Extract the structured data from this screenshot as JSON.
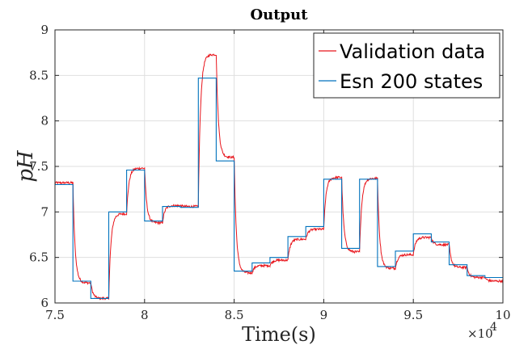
{
  "chart_data": {
    "type": "line",
    "title": "Output",
    "xlabel": "Time(s)",
    "ylabel": "pH",
    "x_multiplier_base": "×10",
    "x_multiplier_exp": "4",
    "xlim": [
      7.5,
      10
    ],
    "ylim": [
      6,
      9
    ],
    "xticks": [
      "7.5",
      "8",
      "8.5",
      "9",
      "9.5",
      "10"
    ],
    "xtick_values": [
      7.5,
      8,
      8.5,
      9,
      9.5,
      10
    ],
    "yticks": [
      "6",
      "6.5",
      "7",
      "7.5",
      "8",
      "8.5",
      "9"
    ],
    "ytick_values": [
      6,
      6.5,
      7,
      7.5,
      8,
      8.5,
      9
    ],
    "grid": true,
    "legend_position": "top-right",
    "series": [
      {
        "name": "Validation data",
        "color": "#e8141b",
        "step_levels": [
          [
            7.5,
            7.32
          ],
          [
            7.6,
            6.22
          ],
          [
            7.7,
            6.05
          ],
          [
            7.8,
            6.98
          ],
          [
            7.9,
            7.48
          ],
          [
            8.0,
            6.88
          ],
          [
            8.1,
            7.07
          ],
          [
            8.2,
            7.06
          ],
          [
            8.3,
            8.73
          ],
          [
            8.4,
            7.6
          ],
          [
            8.5,
            6.33
          ],
          [
            8.6,
            6.41
          ],
          [
            8.7,
            6.47
          ],
          [
            8.8,
            6.7
          ],
          [
            8.9,
            6.81
          ],
          [
            9.0,
            7.38
          ],
          [
            9.1,
            6.56
          ],
          [
            9.2,
            7.37
          ],
          [
            9.3,
            6.38
          ],
          [
            9.4,
            6.53
          ],
          [
            9.5,
            6.72
          ],
          [
            9.6,
            6.64
          ],
          [
            9.7,
            6.39
          ],
          [
            9.8,
            6.28
          ],
          [
            9.9,
            6.24
          ],
          [
            10.0,
            6.24
          ]
        ]
      },
      {
        "name": "Esn 200 states",
        "color": "#0072bd",
        "step_levels": [
          [
            7.5,
            7.3
          ],
          [
            7.6,
            6.24
          ],
          [
            7.7,
            6.05
          ],
          [
            7.8,
            7.0
          ],
          [
            7.9,
            7.46
          ],
          [
            8.0,
            6.9
          ],
          [
            8.1,
            7.06
          ],
          [
            8.2,
            7.05
          ],
          [
            8.3,
            8.47
          ],
          [
            8.4,
            7.56
          ],
          [
            8.5,
            6.35
          ],
          [
            8.6,
            6.44
          ],
          [
            8.7,
            6.5
          ],
          [
            8.8,
            6.73
          ],
          [
            8.9,
            6.84
          ],
          [
            9.0,
            7.36
          ],
          [
            9.1,
            6.6
          ],
          [
            9.2,
            7.36
          ],
          [
            9.3,
            6.4
          ],
          [
            9.4,
            6.57
          ],
          [
            9.5,
            6.76
          ],
          [
            9.6,
            6.67
          ],
          [
            9.7,
            6.42
          ],
          [
            9.8,
            6.3
          ],
          [
            9.9,
            6.28
          ],
          [
            10.0,
            6.28
          ]
        ]
      }
    ]
  }
}
